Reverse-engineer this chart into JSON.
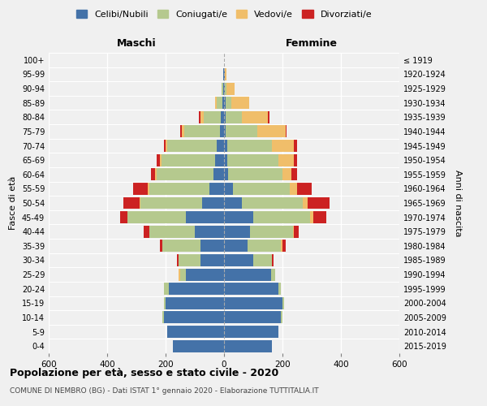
{
  "age_groups": [
    "0-4",
    "5-9",
    "10-14",
    "15-19",
    "20-24",
    "25-29",
    "30-34",
    "35-39",
    "40-44",
    "45-49",
    "50-54",
    "55-59",
    "60-64",
    "65-69",
    "70-74",
    "75-79",
    "80-84",
    "85-89",
    "90-94",
    "95-99",
    "100+"
  ],
  "birth_years": [
    "2015-2019",
    "2010-2014",
    "2005-2009",
    "2000-2004",
    "1995-1999",
    "1990-1994",
    "1985-1989",
    "1980-1984",
    "1975-1979",
    "1970-1974",
    "1965-1969",
    "1960-1964",
    "1955-1959",
    "1950-1954",
    "1945-1949",
    "1940-1944",
    "1935-1939",
    "1930-1934",
    "1925-1929",
    "1920-1924",
    "≤ 1919"
  ],
  "males": {
    "celibi": [
      175,
      195,
      205,
      200,
      190,
      130,
      80,
      80,
      100,
      130,
      75,
      50,
      35,
      30,
      25,
      15,
      10,
      5,
      2,
      2,
      0
    ],
    "coniugati": [
      0,
      0,
      5,
      5,
      15,
      20,
      75,
      130,
      155,
      200,
      210,
      205,
      195,
      185,
      170,
      120,
      60,
      20,
      5,
      2,
      0
    ],
    "vedovi": [
      0,
      0,
      0,
      0,
      0,
      5,
      0,
      0,
      0,
      0,
      5,
      5,
      5,
      5,
      5,
      10,
      10,
      5,
      2,
      0,
      0
    ],
    "divorziati": [
      0,
      0,
      0,
      0,
      0,
      0,
      5,
      10,
      20,
      25,
      55,
      50,
      15,
      10,
      5,
      5,
      5,
      0,
      0,
      0,
      0
    ]
  },
  "females": {
    "nubili": [
      165,
      185,
      195,
      200,
      185,
      160,
      100,
      80,
      90,
      100,
      60,
      30,
      15,
      10,
      10,
      5,
      5,
      5,
      2,
      2,
      0
    ],
    "coniugate": [
      0,
      0,
      5,
      5,
      10,
      15,
      65,
      115,
      145,
      195,
      210,
      195,
      185,
      175,
      155,
      110,
      55,
      20,
      5,
      0,
      0
    ],
    "vedove": [
      0,
      0,
      0,
      0,
      0,
      0,
      0,
      5,
      5,
      10,
      15,
      25,
      30,
      55,
      75,
      95,
      90,
      60,
      30,
      5,
      0
    ],
    "divorziate": [
      0,
      0,
      0,
      0,
      0,
      0,
      5,
      10,
      15,
      45,
      75,
      50,
      20,
      10,
      10,
      5,
      5,
      0,
      0,
      0,
      0
    ]
  },
  "colors": {
    "celibi": "#4472a8",
    "coniugati": "#b5c98e",
    "vedovi": "#f0be6a",
    "divorziati": "#cc2222"
  },
  "legend_labels": [
    "Celibi/Nubili",
    "Coniugati/e",
    "Vedovi/e",
    "Divorziati/e"
  ],
  "title": "Popolazione per età, sesso e stato civile - 2020",
  "subtitle": "COMUNE DI NEMBRO (BG) - Dati ISTAT 1° gennaio 2020 - Elaborazione TUTTITALIA.IT",
  "xlabel_left": "Maschi",
  "xlabel_right": "Femmine",
  "ylabel_left": "Fasce di età",
  "ylabel_right": "Anni di nascita",
  "xlim": 600,
  "background_color": "#f0f0f0"
}
